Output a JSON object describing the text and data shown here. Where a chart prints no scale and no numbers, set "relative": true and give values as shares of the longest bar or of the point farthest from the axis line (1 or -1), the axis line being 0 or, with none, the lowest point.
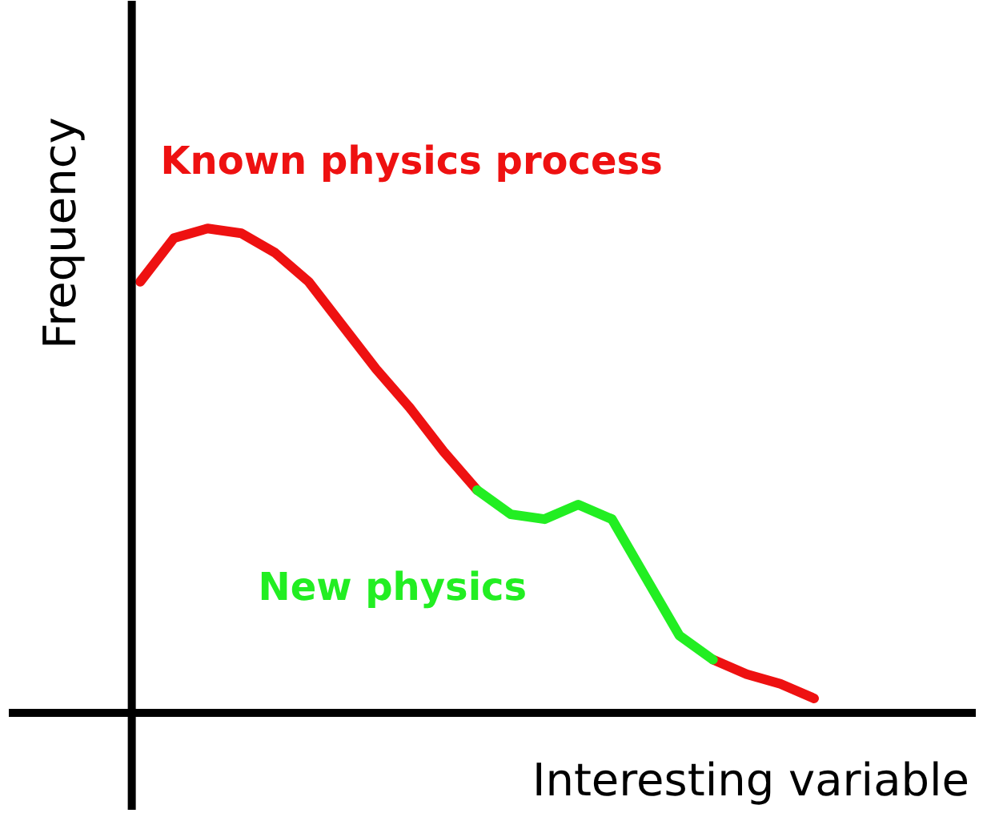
{
  "chart_data": {
    "type": "line",
    "relative": true,
    "xlabel": "Interesting variable",
    "ylabel": "Frequency",
    "categories": [
      null,
      null,
      null,
      null,
      null,
      null,
      null,
      null,
      null,
      null,
      null,
      null,
      null,
      null,
      null,
      null,
      null,
      null,
      null,
      null,
      null
    ],
    "series": [
      {
        "name": "Known physics process",
        "color": "#ee1111",
        "values": [
          0.89,
          0.98,
          1,
          0.99,
          0.95,
          0.89,
          0.8,
          0.71,
          0.63,
          0.54,
          0.46,
          null,
          null,
          null,
          null,
          null,
          null,
          0.11,
          0.08,
          0.06,
          0.03
        ]
      },
      {
        "name": "New physics",
        "color": "#22ee22",
        "values": [
          null,
          null,
          null,
          null,
          null,
          null,
          null,
          null,
          null,
          null,
          0.46,
          0.41,
          0.4,
          0.43,
          0.4,
          0.28,
          0.16,
          0.11,
          null,
          null,
          null
        ]
      }
    ],
    "line_style": "solid",
    "marker": "none",
    "grid": false
  }
}
